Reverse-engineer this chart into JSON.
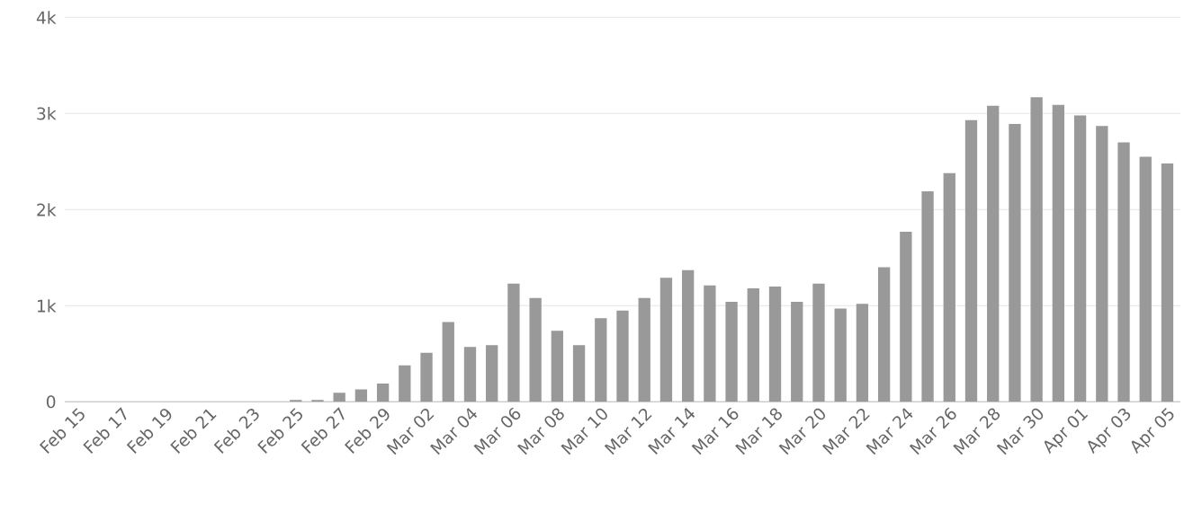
{
  "chart_data": {
    "type": "bar",
    "categories": [
      "Feb 15",
      null,
      "Feb 17",
      null,
      "Feb 19",
      null,
      "Feb 21",
      null,
      "Feb 23",
      null,
      "Feb 25",
      null,
      "Feb 27",
      null,
      "Feb 29",
      null,
      "Mar 02",
      null,
      "Mar 04",
      null,
      "Mar 06",
      null,
      "Mar 08",
      null,
      "Mar 10",
      null,
      "Mar 12",
      null,
      "Mar 14",
      null,
      "Mar 16",
      null,
      "Mar 18",
      null,
      "Mar 20",
      null,
      "Mar 22",
      null,
      "Mar 24",
      null,
      "Mar 26",
      null,
      "Mar 28",
      null,
      "Mar 30",
      null,
      "Apr 01",
      null,
      "Apr 03",
      null,
      "Apr 05"
    ],
    "values": [
      0,
      0,
      0,
      0,
      0,
      0,
      0,
      0,
      0,
      0,
      20,
      20,
      95,
      130,
      190,
      380,
      510,
      830,
      570,
      590,
      1230,
      1080,
      740,
      590,
      870,
      950,
      1080,
      1290,
      1370,
      1210,
      1040,
      1180,
      1200,
      1040,
      1230,
      970,
      1020,
      1400,
      1770,
      2190,
      2380,
      2930,
      3080,
      2890,
      3170,
      3090,
      2980,
      2870,
      2700,
      2550,
      2480
    ],
    "color": "#999999",
    "ylim": [
      0,
      4000
    ],
    "yticks": [
      0,
      {
        "value": 1000,
        "label": "1k"
      },
      {
        "value": 2000,
        "label": "2k"
      },
      {
        "value": 3000,
        "label": "3k"
      },
      {
        "value": 4000,
        "label": "4k"
      }
    ],
    "grid": "y"
  }
}
